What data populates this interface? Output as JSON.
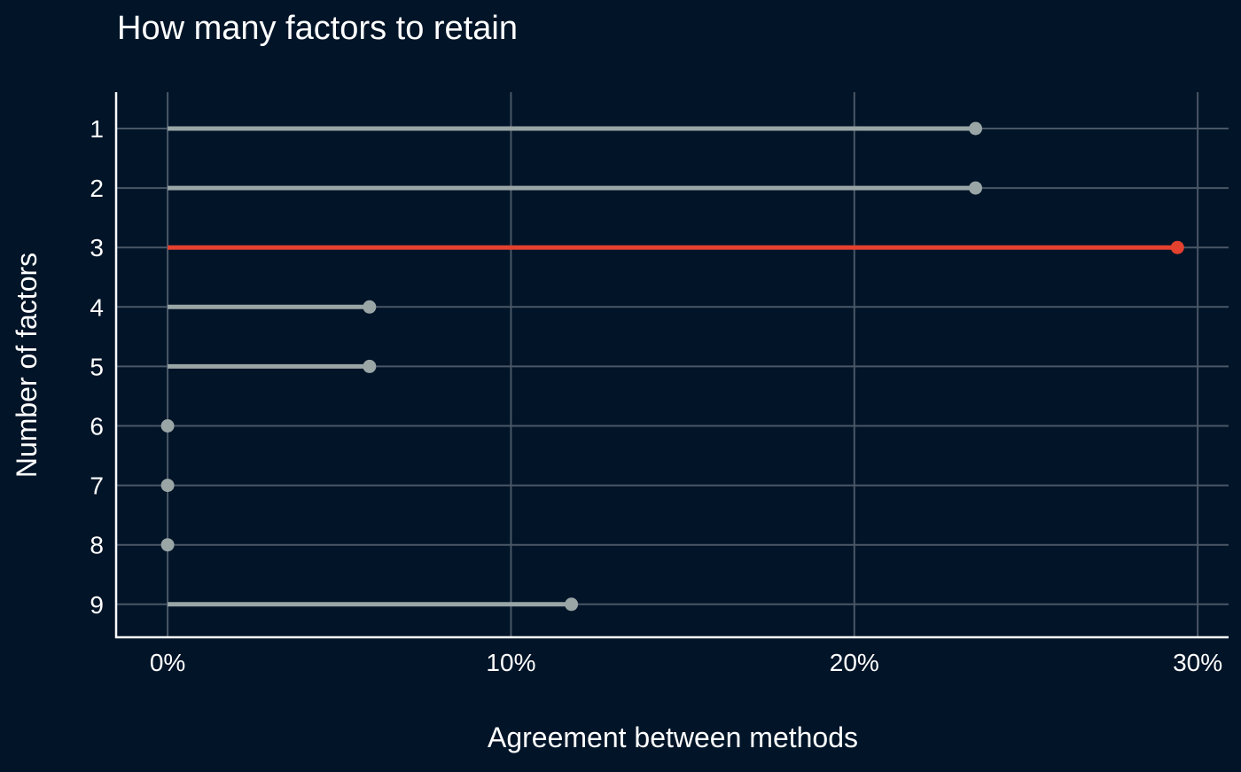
{
  "chart_data": {
    "type": "lollipop",
    "title": "How many factors to retain",
    "xlabel": "Agreement between methods",
    "ylabel": "Number of factors",
    "categories": [
      "1",
      "2",
      "3",
      "4",
      "5",
      "6",
      "7",
      "8",
      "9"
    ],
    "values": [
      23.53,
      23.53,
      29.41,
      5.88,
      5.88,
      0,
      0,
      0,
      11.76
    ],
    "highlight_category": "3",
    "xlim": [
      -1.5,
      30.9
    ],
    "xticks": [
      0,
      10,
      20,
      30
    ],
    "xtick_labels": [
      "0%",
      "10%",
      "20%",
      "30%"
    ],
    "grid": true,
    "colors": {
      "background": "#011428",
      "grid": "#4a5766",
      "axis": "#ffffff",
      "text": "#ffffff",
      "segment": "#9aa6a6",
      "highlight": "#e4412f"
    }
  }
}
